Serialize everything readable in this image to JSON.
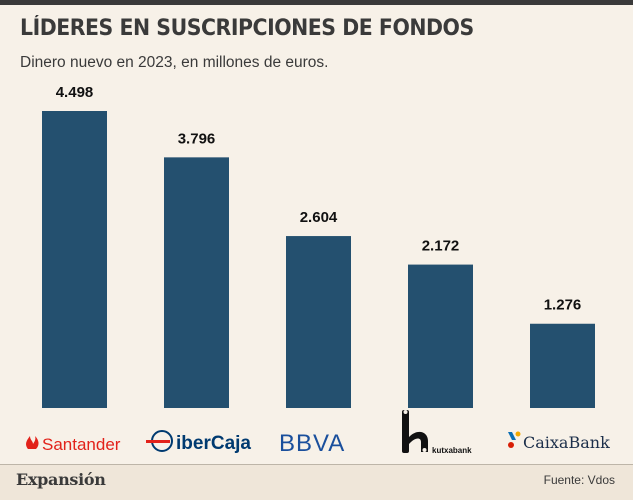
{
  "title": "LÍDERES EN SUSCRIPCIONES DE FONDOS",
  "subtitle": "Dinero nuevo en 2023, en millones de euros.",
  "footer": {
    "brand": "Expansión",
    "source": "Fuente: Vdos"
  },
  "colors": {
    "bar": "#24506f",
    "background": "#f7f1e8"
  },
  "chart_data": {
    "type": "bar",
    "title": "LÍDERES EN SUSCRIPCIONES DE FONDOS",
    "subtitle": "Dinero nuevo en 2023, en millones de euros.",
    "categories": [
      "Santander",
      "iberCaja",
      "BBVA",
      "kutxabank",
      "CaixaBank"
    ],
    "values": [
      4498,
      3796,
      2604,
      2172,
      1276
    ],
    "value_labels": [
      "4.498",
      "3.796",
      "2.604",
      "2.172",
      "1.276"
    ],
    "xlabel": "",
    "ylabel": "",
    "ylim": [
      0,
      4498
    ],
    "grid": false,
    "legend": "none"
  },
  "logos": [
    {
      "name": "Santander",
      "icon": "santander-flame-icon",
      "color": "#e2221a"
    },
    {
      "name": "iberCaja",
      "icon": "ibercaja-globe-icon",
      "color": "#003a70",
      "accent": "#e2221a"
    },
    {
      "name": "BBVA",
      "icon": "bbva-wordmark",
      "color": "#1a4f9c"
    },
    {
      "name": "kutxabank",
      "icon": "kutxabank-k-icon",
      "color": "#111111"
    },
    {
      "name": "CaixaBank",
      "icon": "caixabank-star-icon",
      "color": "#0a6eb4",
      "text_color": "#1c2f4a"
    }
  ]
}
